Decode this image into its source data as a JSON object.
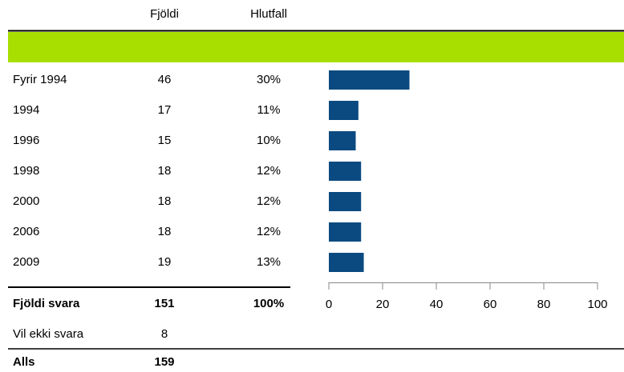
{
  "chart_data": {
    "type": "bar",
    "orientation": "horizontal",
    "columns": [
      "Fjöldi",
      "Hlutfall"
    ],
    "categories": [
      "Fyrir 1994",
      "1994",
      "1996",
      "1998",
      "2000",
      "2006",
      "2009"
    ],
    "counts": [
      46,
      17,
      15,
      18,
      18,
      18,
      19
    ],
    "values": [
      30,
      11,
      10,
      12,
      12,
      12,
      13
    ],
    "value_labels": [
      "30%",
      "11%",
      "10%",
      "12%",
      "12%",
      "12%",
      "13%"
    ],
    "color": "#0b4a80",
    "header_color": "#a9df00",
    "xlim": [
      0,
      100
    ],
    "xticks": [
      0,
      20,
      40,
      60,
      80,
      100
    ],
    "totals": [
      {
        "label": "Fjöldi svara",
        "count": 151,
        "share_label": "100%",
        "bold": true
      },
      {
        "label": "Vil ekki svara",
        "count": 8,
        "bold": false
      },
      {
        "label": "Alls",
        "count": 159,
        "bold": true
      }
    ]
  }
}
